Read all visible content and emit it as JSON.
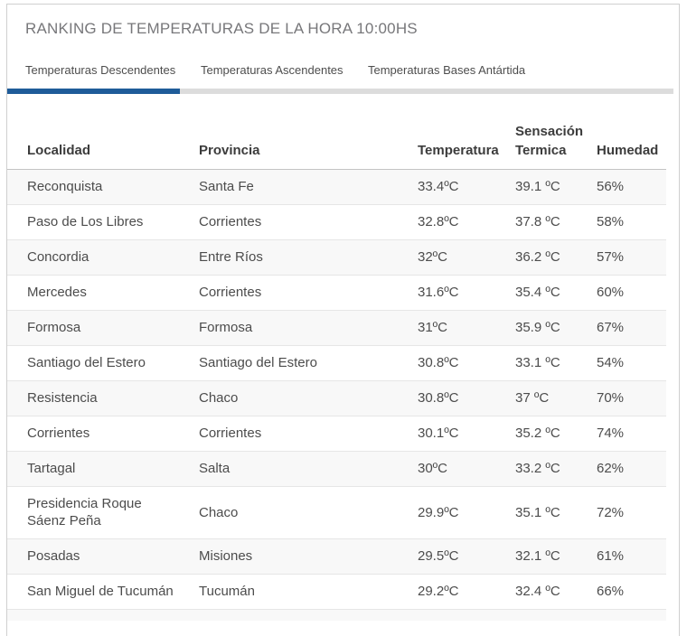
{
  "card": {
    "title": "RANKING DE TEMPERATURAS DE LA HORA 10:00HS"
  },
  "tabs": [
    {
      "label": "Temperaturas Descendentes",
      "active": true
    },
    {
      "label": "Temperaturas Ascendentes",
      "active": false
    },
    {
      "label": "Temperaturas Bases Antártida",
      "active": false
    }
  ],
  "table": {
    "columns": [
      "Localidad",
      "Provincia",
      "Temperatura",
      "Sensación Termica",
      "Humedad"
    ],
    "rows": [
      {
        "localidad": "Reconquista",
        "provincia": "Santa Fe",
        "temperatura": "33.4ºC",
        "sensacion_termica": "39.1 ºC",
        "humedad": "56%"
      },
      {
        "localidad": "Paso de Los Libres",
        "provincia": "Corrientes",
        "temperatura": "32.8ºC",
        "sensacion_termica": "37.8 ºC",
        "humedad": "58%"
      },
      {
        "localidad": "Concordia",
        "provincia": "Entre Ríos",
        "temperatura": "32ºC",
        "sensacion_termica": "36.2 ºC",
        "humedad": "57%"
      },
      {
        "localidad": "Mercedes",
        "provincia": "Corrientes",
        "temperatura": "31.6ºC",
        "sensacion_termica": "35.4 ºC",
        "humedad": "60%"
      },
      {
        "localidad": "Formosa",
        "provincia": "Formosa",
        "temperatura": "31ºC",
        "sensacion_termica": "35.9 ºC",
        "humedad": "67%"
      },
      {
        "localidad": "Santiago del Estero",
        "provincia": "Santiago del Estero",
        "temperatura": "30.8ºC",
        "sensacion_termica": "33.1 ºC",
        "humedad": "54%"
      },
      {
        "localidad": "Resistencia",
        "provincia": "Chaco",
        "temperatura": "30.8ºC",
        "sensacion_termica": "37 ºC",
        "humedad": "70%"
      },
      {
        "localidad": "Corrientes",
        "provincia": "Corrientes",
        "temperatura": "30.1ºC",
        "sensacion_termica": "35.2 ºC",
        "humedad": "74%"
      },
      {
        "localidad": "Tartagal",
        "provincia": "Salta",
        "temperatura": "30ºC",
        "sensacion_termica": "33.2 ºC",
        "humedad": "62%"
      },
      {
        "localidad": "Presidencia Roque Sáenz Peña",
        "provincia": "Chaco",
        "temperatura": "29.9ºC",
        "sensacion_termica": "35.1 ºC",
        "humedad": "72%"
      },
      {
        "localidad": "Posadas",
        "provincia": "Misiones",
        "temperatura": "29.5ºC",
        "sensacion_termica": "32.1 ºC",
        "humedad": "61%"
      },
      {
        "localidad": "San Miguel de Tucumán",
        "provincia": "Tucumán",
        "temperatura": "29.2ºC",
        "sensacion_termica": "32.4 ºC",
        "humedad": "66%"
      }
    ]
  },
  "colors": {
    "accent_blue": "#1f5c99",
    "tab_track_gray": "#dcdcdc",
    "row_stripe": "#f8f8f8"
  }
}
